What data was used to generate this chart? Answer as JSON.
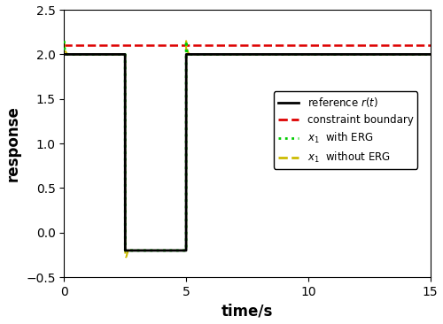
{
  "xlabel": "time/s",
  "ylabel": "response",
  "xlim": [
    0,
    15
  ],
  "ylim": [
    -0.5,
    2.5
  ],
  "xticks": [
    0,
    5,
    10,
    15
  ],
  "yticks": [
    -0.5,
    0.0,
    0.5,
    1.0,
    1.5,
    2.0,
    2.5
  ],
  "constraint_boundary": 2.1,
  "ref_high": 2.0,
  "ref_low": -0.2,
  "t_switch1": 2.5,
  "t_switch2": 5.0,
  "t_end": 15.0,
  "colors": {
    "reference": "#000000",
    "constraint": "#dd0000",
    "with_ERG": "#00cc00",
    "without_ERG": "#ccbb00"
  },
  "legend_labels": [
    "reference $r(t)$",
    "constraint boundary",
    "$x_1$  with ERG",
    "$x_1$  without ERG"
  ],
  "figsize": [
    5.0,
    3.66
  ],
  "dpi": 100
}
